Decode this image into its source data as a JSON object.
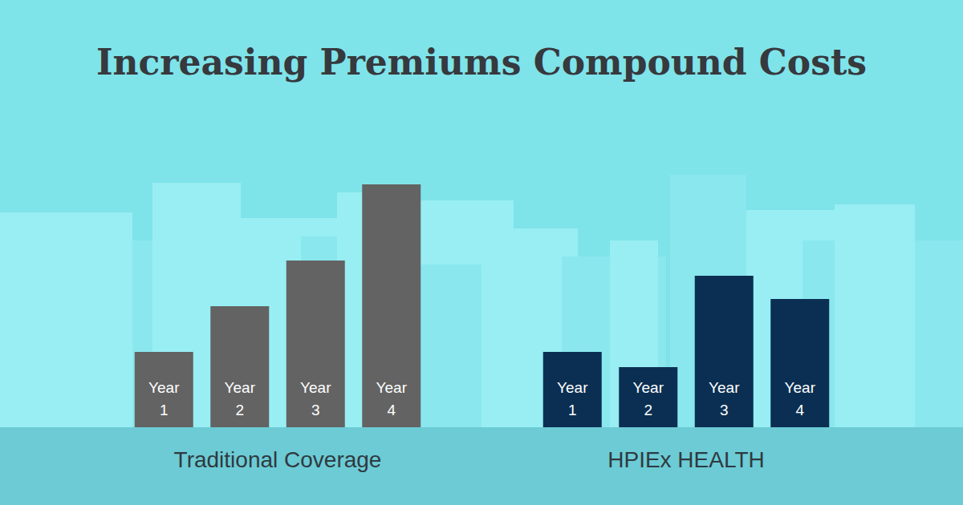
{
  "title": "Increasing Premiums Compound Costs",
  "chart_data": [
    {
      "type": "bar",
      "xlabel": "Traditional Coverage",
      "categories": [
        "Year 1",
        "Year 2",
        "Year 3",
        "Year 4"
      ],
      "values": [
        94,
        151,
        208,
        303
      ],
      "color": "#636363",
      "ylim": [
        0,
        303
      ],
      "tick_labels": false,
      "grid": false
    },
    {
      "type": "bar",
      "xlabel": "HPIEx HEALTH",
      "categories": [
        "Year 1",
        "Year 2",
        "Year 3",
        "Year 4"
      ],
      "values": [
        94,
        75,
        189,
        160
      ],
      "color": "#0b2f52",
      "ylim": [
        0,
        303
      ],
      "tick_labels": false,
      "grid": false
    }
  ]
}
